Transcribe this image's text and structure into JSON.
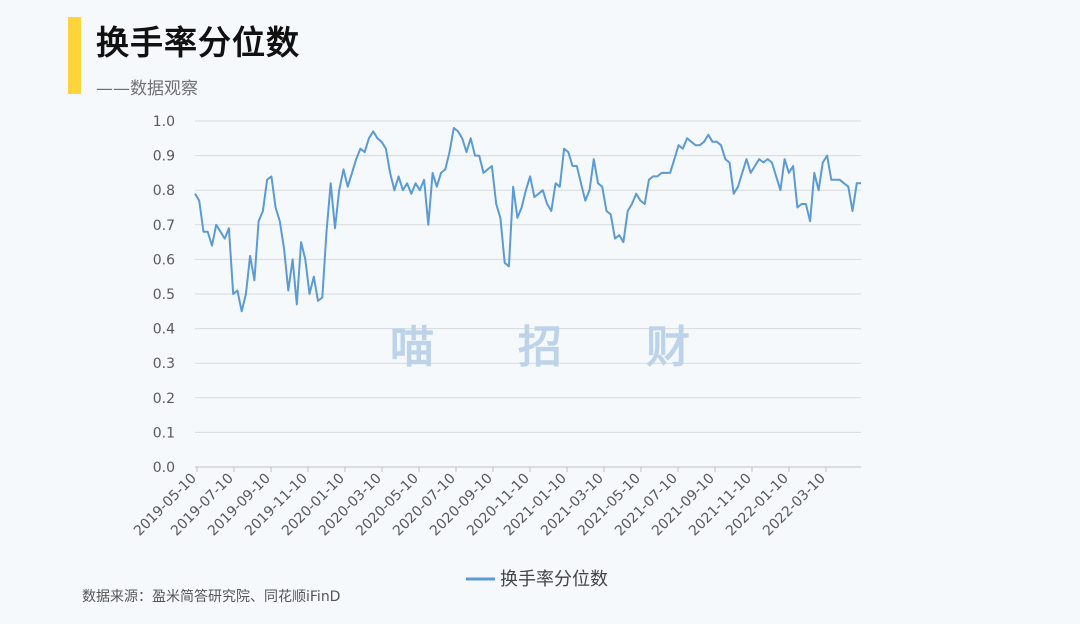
{
  "header": {
    "title": "换手率分位数",
    "subtitle": "——数据观察"
  },
  "watermark": {
    "chars": [
      "喵",
      "招",
      "财"
    ]
  },
  "footer": {
    "source": "数据来源：盈米简答研究院、同花顺iFinD"
  },
  "colors": {
    "accent": "#ffd43b",
    "line": "#5b9bd5",
    "grid": "#d9d9d9",
    "watermark": "#bdd3ea"
  },
  "chart_data": {
    "type": "line",
    "title": "",
    "xlabel": "",
    "ylabel": "",
    "ylim": [
      0,
      1
    ],
    "yticks": [
      "0.0",
      "0.1",
      "0.2",
      "0.3",
      "0.4",
      "0.5",
      "0.6",
      "0.7",
      "0.8",
      "0.9",
      "1.0"
    ],
    "xtick_labels": [
      "2019-05-10",
      "2019-07-10",
      "2019-09-10",
      "2019-11-10",
      "2020-01-10",
      "2020-03-10",
      "2020-05-10",
      "2020-07-10",
      "2020-09-10",
      "2020-11-10",
      "2021-01-10",
      "2021-03-10",
      "2021-05-10",
      "2021-07-10",
      "2021-09-10",
      "2021-11-10",
      "2022-01-10",
      "2022-03-10"
    ],
    "grid": true,
    "legend": "bottom",
    "series": [
      {
        "name": "换手率分位数",
        "values": [
          0.79,
          0.77,
          0.68,
          0.68,
          0.64,
          0.7,
          0.68,
          0.66,
          0.69,
          0.5,
          0.51,
          0.45,
          0.5,
          0.61,
          0.54,
          0.71,
          0.74,
          0.83,
          0.84,
          0.75,
          0.71,
          0.63,
          0.51,
          0.6,
          0.47,
          0.65,
          0.6,
          0.5,
          0.55,
          0.48,
          0.49,
          0.68,
          0.82,
          0.69,
          0.8,
          0.86,
          0.81,
          0.85,
          0.89,
          0.92,
          0.91,
          0.95,
          0.97,
          0.95,
          0.94,
          0.92,
          0.85,
          0.8,
          0.84,
          0.8,
          0.82,
          0.79,
          0.82,
          0.8,
          0.83,
          0.7,
          0.85,
          0.81,
          0.85,
          0.86,
          0.91,
          0.98,
          0.97,
          0.95,
          0.91,
          0.95,
          0.9,
          0.9,
          0.85,
          0.86,
          0.87,
          0.76,
          0.72,
          0.59,
          0.58,
          0.81,
          0.72,
          0.75,
          0.8,
          0.84,
          0.78,
          0.79,
          0.8,
          0.76,
          0.74,
          0.82,
          0.81,
          0.92,
          0.91,
          0.87,
          0.87,
          0.82,
          0.77,
          0.8,
          0.89,
          0.82,
          0.81,
          0.74,
          0.73,
          0.66,
          0.67,
          0.65,
          0.74,
          0.76,
          0.79,
          0.77,
          0.76,
          0.83,
          0.84,
          0.84,
          0.85,
          0.85,
          0.85,
          0.89,
          0.93,
          0.92,
          0.95,
          0.94,
          0.93,
          0.93,
          0.94,
          0.96,
          0.94,
          0.94,
          0.93,
          0.89,
          0.88,
          0.79,
          0.81,
          0.85,
          0.89,
          0.85,
          0.87,
          0.89,
          0.88,
          0.89,
          0.88,
          0.84,
          0.8,
          0.89,
          0.85,
          0.87,
          0.75,
          0.76,
          0.76,
          0.71,
          0.85,
          0.8,
          0.88,
          0.9,
          0.83,
          0.83,
          0.83,
          0.82,
          0.81,
          0.74,
          0.82,
          0.82
        ]
      }
    ]
  }
}
